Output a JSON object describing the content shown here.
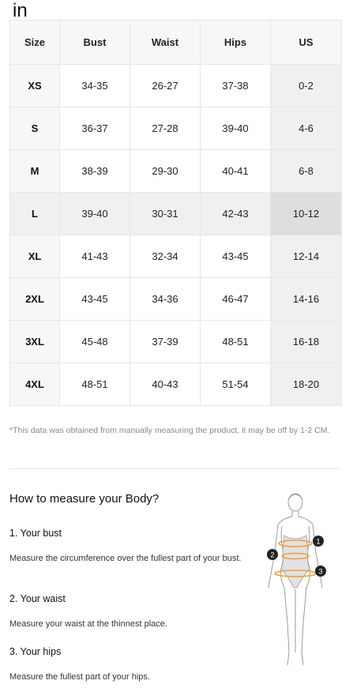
{
  "unit_label": "in",
  "table": {
    "headers": [
      "Size",
      "Bust",
      "Waist",
      "Hips",
      "US"
    ],
    "rows": [
      [
        "XS",
        "34-35",
        "26-27",
        "37-38",
        "0-2"
      ],
      [
        "S",
        "36-37",
        "27-28",
        "39-40",
        "4-6"
      ],
      [
        "M",
        "38-39",
        "29-30",
        "40-41",
        "6-8"
      ],
      [
        "L",
        "39-40",
        "30-31",
        "42-43",
        "10-12"
      ],
      [
        "XL",
        "41-43",
        "32-34",
        "43-45",
        "12-14"
      ],
      [
        "2XL",
        "43-45",
        "34-36",
        "46-47",
        "14-16"
      ],
      [
        "3XL",
        "45-48",
        "37-39",
        "48-51",
        "16-18"
      ],
      [
        "4XL",
        "48-51",
        "40-43",
        "51-54",
        "18-20"
      ]
    ]
  },
  "note": "*This data was obtained from manually measuring the product, it may be off by 1-2 CM.",
  "howto": {
    "title": "How to measure your Body?",
    "sections": [
      {
        "title": "1. Your bust",
        "text": "Measure the circumference over the fullest part of your bust."
      },
      {
        "title": "2. Your waist",
        "text": "Measure your waist at the thinnest place."
      },
      {
        "title": "3. Your hips",
        "text": "Measure the fullest part of your hips."
      }
    ],
    "markers": [
      "1",
      "2",
      "3"
    ]
  },
  "colors": {
    "accent_orange": "#f0a040",
    "marker": "#222222"
  }
}
